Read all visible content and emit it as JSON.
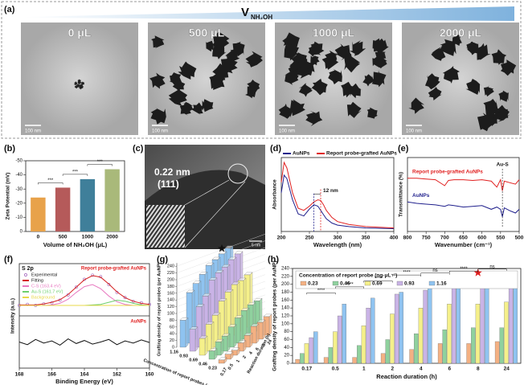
{
  "panel_a": {
    "label": "(a)",
    "banner": "V",
    "banner_sub": "NH₂OH",
    "images": [
      {
        "label": "0 μL",
        "scale": "100 nm"
      },
      {
        "label": "500 μL",
        "scale": "100 nm"
      },
      {
        "label": "1000 μL",
        "scale": "100 nm"
      },
      {
        "label": "2000 μL",
        "scale": "100 nm"
      }
    ]
  },
  "panel_c": {
    "label": "(c)",
    "spacing": "0.22 nm",
    "plane": "(111)",
    "scale": "5 nm"
  },
  "panel_g": {
    "label": "(g)",
    "zlabel": "Grafting density of report probes (per AuNP)",
    "zticks": [
      0,
      20,
      40,
      60,
      80,
      100,
      120,
      140,
      160,
      180,
      200,
      220,
      240
    ],
    "conc_ticks": [
      0.23,
      0.46,
      0.69,
      0.93,
      1.16
    ],
    "conc_label": "Concentration of report probes (ng·μL⁻¹)",
    "time_ticks": [
      0.17,
      0.5,
      1,
      2,
      4,
      6,
      8,
      24
    ],
    "time_label": "Reaction duration (h)"
  },
  "chart_data": [
    {
      "type": "bar",
      "panel": "(b)",
      "ylabel": "Zeta Potential (mV)",
      "xlabel": "Volume of NH₂OH (μL)",
      "categories": [
        "0",
        "500",
        "1000",
        "2000"
      ],
      "values": [
        -24,
        -31,
        -37,
        -44
      ],
      "colors": [
        "#e8a24a",
        "#b55a5a",
        "#3f7f9a",
        "#a9b97a"
      ],
      "ylim": [
        0,
        -50
      ],
      "yticks": [
        -50,
        -40,
        -30,
        -20,
        -10,
        0
      ],
      "annotations": [
        "***",
        "***",
        "***"
      ]
    },
    {
      "type": "line",
      "panel": "(d)",
      "ylabel": "Absorbance",
      "xlabel": "Wavelength (nm)",
      "legend": "top",
      "x": [
        200,
        205,
        210,
        220,
        230,
        240,
        250,
        258,
        265,
        270,
        275,
        280,
        290,
        300,
        320,
        350,
        400
      ],
      "xlim": [
        200,
        400
      ],
      "xticks": [
        200,
        250,
        300,
        350,
        400
      ],
      "ylim": [
        0,
        1.05
      ],
      "annotation": "12 nm",
      "series": [
        {
          "name": "AuNPs",
          "color": "#1f1f8c",
          "values": [
            0.55,
            0.8,
            0.75,
            0.45,
            0.25,
            0.22,
            0.32,
            0.38,
            0.36,
            0.3,
            0.24,
            0.18,
            0.12,
            0.09,
            0.07,
            0.05,
            0.04
          ]
        },
        {
          "name": "Report probe-grafted AuNPs",
          "color": "#e02020",
          "values": [
            0.7,
            0.98,
            0.9,
            0.55,
            0.33,
            0.3,
            0.36,
            0.42,
            0.45,
            0.44,
            0.38,
            0.3,
            0.2,
            0.14,
            0.1,
            0.07,
            0.05
          ]
        }
      ]
    },
    {
      "type": "line",
      "panel": "(e)",
      "ylabel": "Transmittance (%)",
      "xlabel": "Wavenumber (cm⁻¹)",
      "legend": "inline",
      "x": [
        800,
        775,
        750,
        725,
        700,
        690,
        675,
        650,
        625,
        600,
        575,
        560,
        550,
        545,
        540,
        525,
        510,
        500
      ],
      "xlim": [
        800,
        500
      ],
      "xticks": [
        800,
        750,
        700,
        650,
        600,
        550,
        500
      ],
      "ylim": [
        0,
        1
      ],
      "annotation": "Au-S",
      "series": [
        {
          "name": "Report probe-grafted AuNPs",
          "color": "#e02020",
          "values": [
            0.72,
            0.72,
            0.71,
            0.7,
            0.62,
            0.69,
            0.7,
            0.7,
            0.69,
            0.7,
            0.68,
            0.6,
            0.7,
            0.55,
            0.68,
            0.66,
            0.64,
            0.7
          ]
        },
        {
          "name": "AuNPs",
          "color": "#1f1f8c",
          "values": [
            0.4,
            0.38,
            0.37,
            0.36,
            0.34,
            0.36,
            0.35,
            0.33,
            0.34,
            0.35,
            0.3,
            0.33,
            0.3,
            0.2,
            0.32,
            0.28,
            0.25,
            0.3
          ]
        }
      ]
    },
    {
      "type": "line",
      "panel": "(f)",
      "ylabel": "Intensity (a.u.)",
      "xlabel": "Binding Energy (eV)",
      "legend": "upper left",
      "title": "S 2p",
      "upper_label": "Report probe-grafted AuNPs",
      "x": [
        168,
        167.5,
        167,
        166.5,
        166,
        165.5,
        165,
        164.5,
        164,
        163.5,
        163,
        162.5,
        162,
        161.5,
        161,
        160.5,
        160
      ],
      "xlim": [
        168,
        160
      ],
      "xticks": [
        168,
        166,
        164,
        162,
        160
      ],
      "ylim": [
        0,
        1
      ],
      "series": [
        {
          "name": "Experimental",
          "color": "#b07cc6",
          "markers": true,
          "values": [
            0.2,
            0.22,
            0.2,
            0.23,
            0.25,
            0.3,
            0.4,
            0.55,
            0.7,
            0.78,
            0.75,
            0.6,
            0.45,
            0.35,
            0.28,
            0.25,
            0.22
          ]
        },
        {
          "name": "Fitting",
          "color": "#d42020",
          "values": [
            0.21,
            0.21,
            0.21,
            0.23,
            0.26,
            0.31,
            0.41,
            0.55,
            0.69,
            0.77,
            0.74,
            0.61,
            0.46,
            0.35,
            0.28,
            0.24,
            0.22
          ]
        },
        {
          "name": "C-S (163.4 eV)",
          "color": "#e879c0",
          "values": [
            0.2,
            0.2,
            0.2,
            0.2,
            0.21,
            0.24,
            0.32,
            0.45,
            0.56,
            0.6,
            0.52,
            0.38,
            0.27,
            0.22,
            0.2,
            0.2,
            0.2
          ]
        },
        {
          "name": "Au-S (161.7 eV)",
          "color": "#6ccf6c",
          "values": [
            0.2,
            0.2,
            0.2,
            0.2,
            0.2,
            0.2,
            0.2,
            0.2,
            0.2,
            0.21,
            0.22,
            0.26,
            0.3,
            0.28,
            0.24,
            0.21,
            0.2
          ]
        },
        {
          "name": "Background",
          "color": "#e8d84a",
          "values": [
            0.2,
            0.2,
            0.2,
            0.2,
            0.2,
            0.2,
            0.2,
            0.2,
            0.2,
            0.2,
            0.2,
            0.2,
            0.2,
            0.2,
            0.2,
            0.2,
            0.2
          ]
        }
      ],
      "lower": {
        "label": "AuNPs",
        "color": "#111111",
        "values": [
          0.5,
          0.45,
          0.55,
          0.48,
          0.52,
          0.44,
          0.56,
          0.47,
          0.53,
          0.46,
          0.5,
          0.55,
          0.45,
          0.52,
          0.48,
          0.54,
          0.49
        ]
      }
    },
    {
      "type": "bar",
      "panel": "(h)",
      "ylabel": "Grafting density of report probes (per AuNP)",
      "xlabel": "Reaction duration (h)",
      "legend_title": "Concentration of report probe (ng·μL⁻¹)",
      "categories": [
        "0.17",
        "0.5",
        "1",
        "2",
        "4",
        "6",
        "8",
        "24"
      ],
      "ylim": [
        0,
        240
      ],
      "yticks": [
        0,
        20,
        40,
        60,
        80,
        100,
        120,
        140,
        160,
        180,
        200,
        220,
        240
      ],
      "annotations": [
        "****",
        "****",
        "****",
        "****",
        "ns",
        "****",
        "ns"
      ],
      "series": [
        {
          "name": "0.23",
          "color": "#f4b183",
          "values": [
            10,
            15,
            15,
            25,
            35,
            50,
            50,
            55
          ]
        },
        {
          "name": "0.46",
          "color": "#8fd19e",
          "values": [
            25,
            40,
            45,
            60,
            75,
            85,
            90,
            90
          ]
        },
        {
          "name": "0.69",
          "color": "#f5f08a",
          "values": [
            50,
            80,
            95,
            125,
            140,
            150,
            150,
            155
          ]
        },
        {
          "name": "0.93",
          "color": "#c9b3e6",
          "values": [
            65,
            120,
            140,
            175,
            185,
            190,
            200,
            205
          ]
        },
        {
          "name": "1.16",
          "color": "#8fc3f0",
          "values": [
            80,
            150,
            165,
            180,
            195,
            200,
            205,
            210
          ]
        }
      ]
    }
  ]
}
